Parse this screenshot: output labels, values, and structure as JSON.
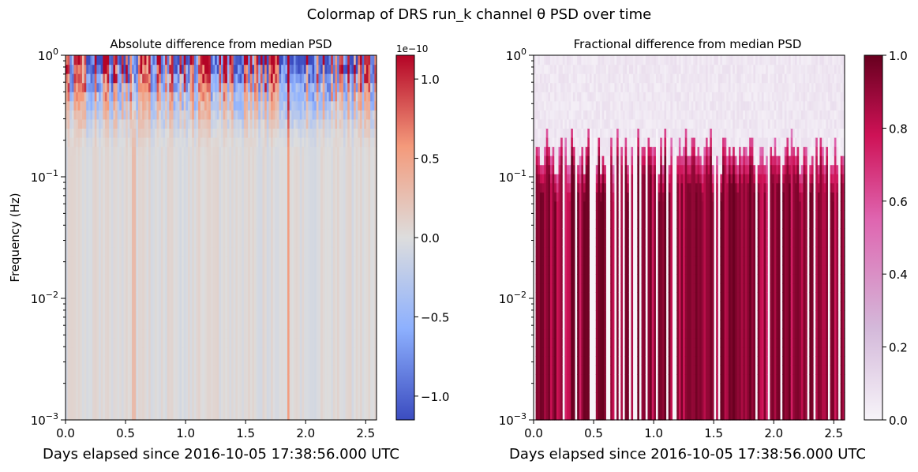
{
  "figure": {
    "suptitle": "Colormap of DRS run_k channel θ PSD over time"
  },
  "chart_data": [
    {
      "type": "heatmap",
      "title": "Absolute difference from median PSD",
      "xlabel": "Days elapsed since 2016-10-05 17:38:56.000 UTC",
      "ylabel": "Frequency (Hz)",
      "xlim": [
        0.0,
        2.59
      ],
      "x_ticks": [
        0.0,
        0.5,
        1.0,
        1.5,
        2.0,
        2.5
      ],
      "x_tick_labels": [
        "0.0",
        "0.5",
        "1.0",
        "1.5",
        "2.0",
        "2.5"
      ],
      "y_scale": "log",
      "ylim": [
        0.001,
        1
      ],
      "y_ticks": [
        0.001,
        0.01,
        0.1,
        1
      ],
      "y_tick_labels": [
        {
          "base": "10",
          "exp": "−3"
        },
        {
          "base": "10",
          "exp": "−2"
        },
        {
          "base": "10",
          "exp": "−1"
        },
        {
          "base": "10",
          "exp": "0"
        }
      ],
      "colormap": "coolwarm",
      "colors": [
        "#3b4cc0",
        "#8db0fe",
        "#dddddd",
        "#f49a7b",
        "#b40426"
      ],
      "colorbar": {
        "offset_label": "1e−10",
        "range": [
          -1.15,
          1.15
        ],
        "ticks": [
          -1.0,
          -0.5,
          0.0,
          0.5,
          1.0
        ],
        "tick_labels": [
          "−1.0",
          "−0.5",
          "0.0",
          "0.5",
          "1.0"
        ]
      },
      "notable_columns": [
        {
          "day": 0.57,
          "value": 0.3
        },
        {
          "day": 1.86,
          "value": 0.55
        }
      ]
    },
    {
      "type": "heatmap",
      "title": "Fractional difference from median PSD",
      "xlabel": "Days elapsed since 2016-10-05 17:38:56.000 UTC",
      "ylabel": "",
      "xlim": [
        0.0,
        2.59
      ],
      "x_ticks": [
        0.0,
        0.5,
        1.0,
        1.5,
        2.0,
        2.5
      ],
      "x_tick_labels": [
        "0.0",
        "0.5",
        "1.0",
        "1.5",
        "2.0",
        "2.5"
      ],
      "y_scale": "log",
      "ylim": [
        0.001,
        1
      ],
      "y_ticks": [
        0.001,
        0.01,
        0.1,
        1
      ],
      "y_tick_labels": [
        {
          "base": "10",
          "exp": "−3"
        },
        {
          "base": "10",
          "exp": "−2"
        },
        {
          "base": "10",
          "exp": "−1"
        },
        {
          "base": "10",
          "exp": "0"
        }
      ],
      "colormap": "PuRd",
      "colors": [
        "#f7f4f9",
        "#d4b9da",
        "#df65b0",
        "#ce1256",
        "#67001f"
      ],
      "colorbar": {
        "offset_label": "",
        "range": [
          0.0,
          1.0
        ],
        "ticks": [
          0.0,
          0.2,
          0.4,
          0.6,
          0.8,
          1.0
        ],
        "tick_labels": [
          "0.0",
          "0.2",
          "0.4",
          "0.6",
          "0.8",
          "1.0"
        ]
      },
      "transition_frequency_hz": 0.15
    }
  ]
}
